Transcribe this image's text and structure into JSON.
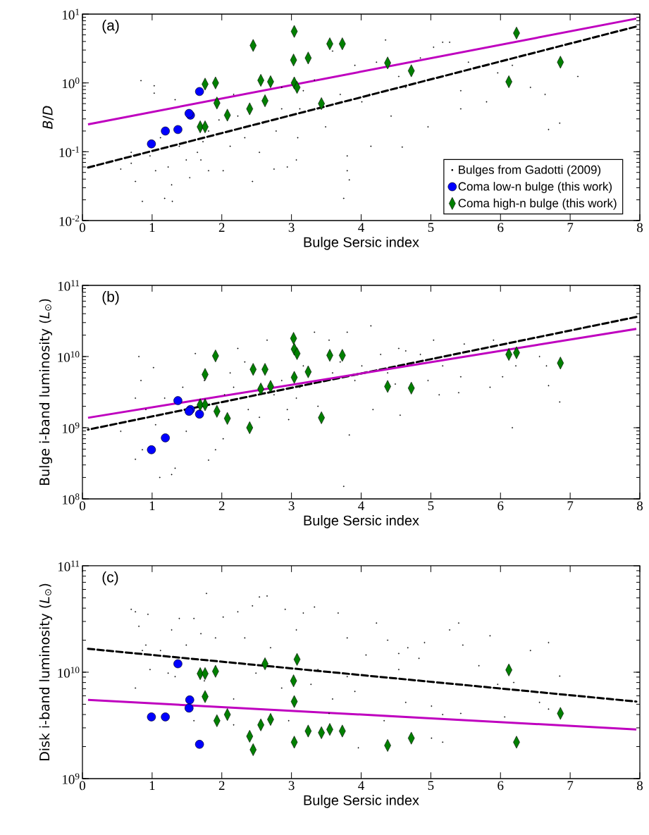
{
  "chart_data": [
    {
      "type": "scatter",
      "xlabel": "Bulge Sersic index",
      "ylabel": "*B*/*D*",
      "log": "y",
      "legend": "bottom right",
      "xlim": [
        0,
        8
      ],
      "xticks": [
        0,
        1,
        2,
        3,
        4,
        5,
        6,
        7,
        8
      ],
      "ylim": [
        0.01,
        10
      ],
      "yticks": [
        {
          "value": 0.01,
          "label": "10$^{-2}$"
        },
        {
          "value": 0.1,
          "label": "10$^{-1}$"
        },
        {
          "value": 1,
          "label": "10$^{0}$"
        },
        {
          "value": 10,
          "label": "10$^{1}$"
        }
      ],
      "annotations": [
        "(a)"
      ],
      "series": [
        {
          "name": "Bulges from Gadotti (2009)",
          "color": "#000000",
          "marker": "circle",
          "x": [
            0.84,
            1.03,
            1.03,
            1.33,
            0.7,
            0.76,
            0.86,
            1.18,
            1.29,
            1.05,
            1.23,
            1.49,
            1.65,
            1.73,
            1.81,
            1.96,
            2.02,
            2.12,
            2.17,
            2.33,
            2.44,
            2.54,
            2.59,
            2.75,
            2.78,
            2.86,
            2.94,
            3.07,
            3.09,
            3.12,
            3.17,
            3.33,
            3.49,
            3.59,
            3.8,
            3.83,
            3.91,
            4.12,
            4.14,
            4.22,
            4.35,
            4.43,
            4.54,
            4.59,
            4.85,
            4.96,
            5.04,
            5.17,
            5.27,
            5.43,
            5.54,
            5.8,
            5.96,
            6.17,
            6.43,
            6.64,
            6.69,
            6.85,
            7.11,
            5.43,
            4.64,
            4.01,
            3.7,
            3.33,
            2.86,
            2.23,
            1.7,
            1.39,
            1.12,
            0.97,
            0.55,
            0.7,
            1.28,
            1.54,
            1.81,
            3.75,
            3.8
          ],
          "values": [
            1.08,
            0.91,
            0.71,
            0.57,
            0.098,
            0.037,
            0.019,
            0.021,
            0.019,
            0.053,
            0.06,
            0.076,
            0.098,
            0.14,
            0.2,
            0.29,
            0.053,
            0.12,
            0.68,
            0.16,
            0.037,
            0.098,
            0.26,
            0.056,
            0.2,
            0.42,
            0.06,
            0.076,
            0.16,
            0.42,
            0.77,
            1.1,
            0.23,
            2.9,
            0.087,
            0.039,
            1.8,
            0.68,
            0.12,
            2.0,
            4.2,
            0.33,
            1.24,
            0.117,
            2.3,
            0.23,
            3.3,
            3.9,
            3.9,
            0.77,
            2.0,
            0.53,
            1.4,
            1.8,
            0.86,
            0.68,
            0.21,
            0.26,
            1.24,
            0.42,
            0.86,
            0.53,
            0.68,
            0.42,
            0.86,
            0.33,
            0.076,
            0.12,
            0.16,
            0.087,
            0.056,
            0.068,
            0.033,
            0.042,
            0.053,
            0.021,
            0.053
          ]
        },
        {
          "type": "line",
          "color": "#000000",
          "line_style": "dashed",
          "marker": "none",
          "x": [
            0.08,
            7.95
          ],
          "values": [
            0.059,
            6.6
          ]
        },
        {
          "type": "line",
          "color": "#bf00bf",
          "line_style": "solid",
          "marker": "none",
          "x": [
            0.08,
            7.95
          ],
          "values": [
            0.25,
            8.6
          ]
        },
        {
          "name": "Coma low-n bulge (this work)",
          "color": "#0000ff",
          "marker": "circle",
          "x": [
            0.99,
            1.19,
            1.37,
            1.55,
            1.53,
            1.68
          ],
          "values": [
            0.13,
            0.2,
            0.21,
            0.34,
            0.36,
            0.75
          ]
        },
        {
          "name": "Coma high-n bulge (this work)",
          "color": "#008000",
          "marker": "diamond",
          "x": [
            1.76,
            1.91,
            1.69,
            1.76,
            1.93,
            2.08,
            2.45,
            2.4,
            2.56,
            2.62,
            2.7,
            3.04,
            3.03,
            3.04,
            3.08,
            3.24,
            3.43,
            3.55,
            3.73,
            4.38,
            4.72,
            6.12,
            6.23,
            6.86
          ],
          "values": [
            0.96,
            1.0,
            0.23,
            0.23,
            0.51,
            0.34,
            3.5,
            0.42,
            1.09,
            0.55,
            1.04,
            5.6,
            2.15,
            1.0,
            0.86,
            2.3,
            0.5,
            3.7,
            3.7,
            1.95,
            1.5,
            1.04,
            5.3,
            2.0
          ]
        }
      ]
    },
    {
      "type": "scatter",
      "xlabel": "Bulge Sersic index",
      "ylabel": "Bulge i-band luminosity (*L*$_{⊙}$)",
      "log": "y",
      "xlim": [
        0,
        8
      ],
      "xticks": [
        0,
        1,
        2,
        3,
        4,
        5,
        6,
        7,
        8
      ],
      "ylim": [
        100000000.0,
        100000000000.0
      ],
      "yticks": [
        {
          "value": 100000000.0,
          "label": "10$^{8}$"
        },
        {
          "value": 1000000000.0,
          "label": "10$^{9}$"
        },
        {
          "value": 10000000000.0,
          "label": "10$^{10}$"
        },
        {
          "value": 100000000000.0,
          "label": "10$^{11}$"
        }
      ],
      "annotations": [
        "(b)"
      ],
      "series": [
        {
          "color": "#000000",
          "marker": "circle",
          "x": [
            0.81,
            1.02,
            0.84,
            0.76,
            0.76,
            0.86,
            1.11,
            1.28,
            1.33,
            1.05,
            1.2,
            1.44,
            1.49,
            1.62,
            1.65,
            1.81,
            1.91,
            2.02,
            2.04,
            2.12,
            2.23,
            2.33,
            2.38,
            2.54,
            2.65,
            2.75,
            2.86,
            2.94,
            2.96,
            3.07,
            3.17,
            3.33,
            3.38,
            3.54,
            3.7,
            3.8,
            3.83,
            3.75,
            3.91,
            4.01,
            4.14,
            4.17,
            4.28,
            4.38,
            4.49,
            4.56,
            4.64,
            4.85,
            4.96,
            5.04,
            5.12,
            5.17,
            5.43,
            5.4,
            5.48,
            5.85,
            5.9,
            6.03,
            6.17,
            6.22,
            6.56,
            6.69,
            6.85,
            6.66,
            4.54,
            3.59,
            3.12,
            2.17,
            1.75,
            1.18,
            0.91,
            0.55
          ],
          "values": [
            10000000000.0,
            7000000000.0,
            4600000000.0,
            2600000000.0,
            360000000.0,
            490000000.0,
            200000000.0,
            220000000.0,
            270000000.0,
            1100000000.0,
            1600000000.0,
            3700000000.0,
            890000000.0,
            11000000000.0,
            2000000000.0,
            350000000.0,
            490000000.0,
            700000000.0,
            2900000000.0,
            5900000000.0,
            13000000000.0,
            8400000000.0,
            1800000000.0,
            1400000000.0,
            17000000000.0,
            2900000000.0,
            4600000000.0,
            1800000000.0,
            1300000000.0,
            2600000000.0,
            7400000000.0,
            22000000000.0,
            2000000000.0,
            17000000000.0,
            8400000000.0,
            22000000000.0,
            790000000.0,
            150000000.0,
            4600000000.0,
            7400000000.0,
            27000000000.0,
            1800000000.0,
            10700000000.0,
            5900000000.0,
            4100000000.0,
            1500000000.0,
            12000000000.0,
            10700000000.0,
            4600000000.0,
            17000000000.0,
            2900000000.0,
            7400000000.0,
            5200000000.0,
            3100000000.0,
            15000000000.0,
            3700000000.0,
            17000000000.0,
            5200000000.0,
            1000000000.0,
            7400000000.0,
            10000000000.0,
            3900000000.0,
            2300000000.0,
            7400000000.0,
            13000000000.0,
            5900000000.0,
            3700000000.0,
            3700000000.0,
            4600000000.0,
            2600000000.0,
            1800000000.0,
            890000000.0
          ]
        },
        {
          "type": "line",
          "color": "#000000",
          "line_style": "dashed",
          "marker": "none",
          "x": [
            7.95,
            0.08
          ],
          "values": [
            36000000000.0,
            940000000.0
          ]
        },
        {
          "type": "line",
          "color": "#bf00bf",
          "line_style": "solid",
          "marker": "none",
          "x": [
            0.08,
            7.95
          ],
          "values": [
            1380000000.0,
            24500000000.0
          ]
        },
        {
          "color": "#0000ff",
          "marker": "circle",
          "x": [
            0.99,
            1.19,
            1.37,
            1.55,
            1.53,
            1.68
          ],
          "values": [
            490000000.0,
            720000000.0,
            2400000000.0,
            1800000000.0,
            1700000000.0,
            1550000000.0
          ]
        },
        {
          "color": "#008000",
          "marker": "diamond",
          "x": [
            1.69,
            1.76,
            1.76,
            1.91,
            1.93,
            2.08,
            2.4,
            2.45,
            2.56,
            2.62,
            2.7,
            3.03,
            3.04,
            3.04,
            3.08,
            3.24,
            3.43,
            3.55,
            3.73,
            4.38,
            4.72,
            6.12,
            6.23,
            6.86
          ],
          "values": [
            2100000000.0,
            2100000000.0,
            5600000000.0,
            10200000000.0,
            1700000000.0,
            1350000000.0,
            1000000000.0,
            6600000000.0,
            3500000000.0,
            6600000000.0,
            3800000000.0,
            18000000000.0,
            12700000000.0,
            5100000000.0,
            11000000000.0,
            6100000000.0,
            1380000000.0,
            10400000000.0,
            10400000000.0,
            3800000000.0,
            3600000000.0,
            10700000000.0,
            11300000000.0,
            8100000000.0
          ]
        }
      ]
    },
    {
      "type": "scatter",
      "xlabel": "Bulge Sersic index",
      "ylabel": "Disk i-band luminosity (*L*$_{⊙}$)",
      "log": "y",
      "xlim": [
        0,
        8
      ],
      "xticks": [
        0,
        1,
        2,
        3,
        4,
        5,
        6,
        7,
        8
      ],
      "ylim": [
        1000000000.0,
        100000000000.0
      ],
      "yticks": [
        {
          "value": 1000000000.0,
          "label": "10$^{9}$"
        },
        {
          "value": 10000000000.0,
          "label": "10$^{10}$"
        },
        {
          "value": 100000000000.0,
          "label": "10$^{11}$"
        }
      ],
      "annotations": [
        "(c)"
      ],
      "series": [
        {
          "color": "#000000",
          "marker": "circle",
          "x": [
            0.7,
            0.76,
            0.81,
            0.94,
            0.86,
            0.97,
            0.76,
            1.12,
            1.28,
            1.39,
            1.33,
            1.49,
            1.6,
            1.7,
            1.78,
            1.75,
            1.91,
            2.02,
            2.17,
            2.23,
            2.33,
            2.44,
            2.54,
            2.65,
            2.49,
            2.7,
            2.91,
            2.86,
            3.07,
            3.17,
            3.33,
            3.38,
            3.54,
            3.67,
            3.8,
            3.91,
            3.96,
            4.07,
            4.22,
            4.38,
            4.54,
            4.67,
            4.83,
            4.91,
            5.01,
            5.17,
            5.01,
            5.17,
            5.27,
            5.4,
            5.46,
            5.43,
            5.69,
            5.85,
            5.96,
            6.06,
            6.19,
            6.43,
            6.56,
            6.69,
            6.85,
            6.69,
            4.64,
            4.33,
            3.59,
            2.96,
            2.17,
            1.6,
            1.23,
            0.91,
            4.54,
            3.8,
            3.28
          ],
          "values": [
            39000000000.0,
            37000000000.0,
            27000000000.0,
            35000000000.0,
            16000000000.0,
            10600000000.0,
            7100000000.0,
            16000000000.0,
            25000000000.0,
            32000000000.0,
            9100000000.0,
            18000000000.0,
            32000000000.0,
            23000000000.0,
            55000000000.0,
            8300000000.0,
            21000000000.0,
            33000000000.0,
            5600000000.0,
            37000000000.0,
            21000000000.0,
            42000000000.0,
            51000000000.0,
            52000000000.0,
            9800000000.0,
            17000000000.0,
            39000000000.0,
            7100000000.0,
            25000000000.0,
            36000000000.0,
            41000000000.0,
            10600000000.0,
            4100000000.0,
            36000000000.0,
            21000000000.0,
            6600000000.0,
            1950000000.0,
            14500000000.0,
            29000000000.0,
            20000000000.0,
            15000000000.0,
            17000000000.0,
            13500000000.0,
            19000000000.0,
            4800000000.0,
            4000000000.0,
            2400000000.0,
            2200000000.0,
            25000000000.0,
            29000000000.0,
            18000000000.0,
            4100000000.0,
            11500000000.0,
            22000000000.0,
            7700000000.0,
            3800000000.0,
            8000000000.0,
            16000000000.0,
            5200000000.0,
            19000000000.0,
            9200000000.0,
            4500000000.0,
            5200000000.0,
            3500000000.0,
            5600000000.0,
            3500000000.0,
            3200000000.0,
            3500000000.0,
            9800000000.0,
            18000000000.0,
            10600000000.0,
            9100000000.0,
            7700000000.0
          ]
        },
        {
          "type": "line",
          "color": "#000000",
          "line_style": "dashed",
          "marker": "none",
          "x": [
            0.08,
            7.95
          ],
          "values": [
            16600000000.0,
            5300000000.0
          ]
        },
        {
          "type": "line",
          "color": "#bf00bf",
          "line_style": "solid",
          "marker": "none",
          "x": [
            0.08,
            7.95
          ],
          "values": [
            5500000000.0,
            2900000000.0
          ]
        },
        {
          "color": "#0000ff",
          "marker": "circle",
          "x": [
            0.99,
            1.19,
            1.37,
            1.54,
            1.53,
            1.68
          ],
          "values": [
            3800000000.0,
            3800000000.0,
            12000000000.0,
            5500000000.0,
            4600000000.0,
            2100000000.0
          ]
        },
        {
          "color": "#008000",
          "marker": "diamond",
          "x": [
            1.69,
            1.76,
            1.91,
            1.76,
            1.93,
            2.08,
            2.4,
            2.45,
            2.56,
            2.62,
            2.7,
            3.03,
            3.04,
            3.08,
            3.04,
            3.24,
            3.43,
            3.55,
            3.73,
            4.38,
            4.72,
            6.12,
            6.23,
            6.86
          ],
          "values": [
            9700000000.0,
            9700000000.0,
            10200000000.0,
            5900000000.0,
            3500000000.0,
            4000000000.0,
            2500000000.0,
            1870000000.0,
            3200000000.0,
            12000000000.0,
            3600000000.0,
            8300000000.0,
            5300000000.0,
            13200000000.0,
            2200000000.0,
            2800000000.0,
            2700000000.0,
            2900000000.0,
            2800000000.0,
            2050000000.0,
            2400000000.0,
            10500000000.0,
            2200000000.0,
            4100000000.0
          ]
        }
      ]
    }
  ]
}
